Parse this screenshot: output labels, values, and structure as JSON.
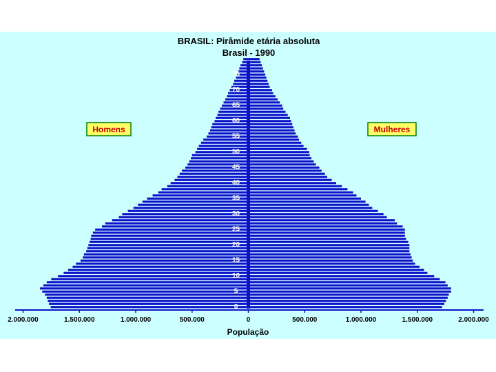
{
  "chart_data": {
    "type": "bar",
    "title": "BRASIL: Pirâmide etária absoluta",
    "subtitle": "Brasil - 1990",
    "xlabel": "População",
    "xlim": [
      -2000000,
      2000000
    ],
    "x_ticks": [
      {
        "value": -2000000,
        "label": "2.000.000"
      },
      {
        "value": -1500000,
        "label": "1.500.000"
      },
      {
        "value": -1000000,
        "label": "1.000.000"
      },
      {
        "value": -500000,
        "label": "500.000"
      },
      {
        "value": 0,
        "label": "0"
      },
      {
        "value": 500000,
        "label": "500.000"
      },
      {
        "value": 1000000,
        "label": "1.000.000"
      },
      {
        "value": 1500000,
        "label": "1.500.000"
      },
      {
        "value": 2000000,
        "label": "2.000.000"
      }
    ],
    "age_labels": [
      "0",
      "5",
      "10",
      "15",
      "20",
      "25",
      "30",
      "35",
      "40",
      "45",
      "50",
      "55",
      "60",
      "65",
      "70",
      "75"
    ],
    "ages": [
      0,
      1,
      2,
      3,
      4,
      5,
      6,
      7,
      8,
      9,
      10,
      11,
      12,
      13,
      14,
      15,
      16,
      17,
      18,
      19,
      20,
      21,
      22,
      23,
      24,
      25,
      26,
      27,
      28,
      29,
      30,
      31,
      32,
      33,
      34,
      35,
      36,
      37,
      38,
      39,
      40,
      41,
      42,
      43,
      44,
      45,
      46,
      47,
      48,
      49,
      50,
      51,
      52,
      53,
      54,
      55,
      56,
      57,
      58,
      59,
      60,
      61,
      62,
      63,
      64,
      65,
      66,
      67,
      68,
      69,
      70,
      71,
      72,
      73,
      74,
      75,
      76,
      77,
      78,
      79,
      80
    ],
    "series": [
      {
        "name": "Homens",
        "color": "#1010c8",
        "values": [
          1755000,
          1770000,
          1780000,
          1790000,
          1805000,
          1830000,
          1850000,
          1820000,
          1790000,
          1750000,
          1690000,
          1640000,
          1600000,
          1560000,
          1530000,
          1490000,
          1470000,
          1460000,
          1440000,
          1430000,
          1420000,
          1410000,
          1400000,
          1395000,
          1380000,
          1360000,
          1300000,
          1270000,
          1210000,
          1150000,
          1120000,
          1070000,
          1020000,
          980000,
          940000,
          900000,
          850000,
          800000,
          770000,
          720000,
          690000,
          655000,
          630000,
          610000,
          590000,
          560000,
          540000,
          525000,
          510000,
          500000,
          470000,
          455000,
          440000,
          420000,
          400000,
          370000,
          355000,
          340000,
          330000,
          320000,
          300000,
          290000,
          275000,
          265000,
          250000,
          235000,
          220000,
          205000,
          190000,
          180000,
          165000,
          150000,
          135000,
          125000,
          110000,
          100000,
          90000,
          80000,
          70000,
          55000,
          45000
        ]
      },
      {
        "name": "Mulheres",
        "color": "#1010c8",
        "values": [
          1720000,
          1740000,
          1755000,
          1770000,
          1780000,
          1800000,
          1800000,
          1770000,
          1750000,
          1700000,
          1650000,
          1590000,
          1560000,
          1520000,
          1480000,
          1460000,
          1450000,
          1440000,
          1430000,
          1430000,
          1430000,
          1420000,
          1400000,
          1390000,
          1390000,
          1390000,
          1370000,
          1320000,
          1300000,
          1230000,
          1200000,
          1150000,
          1100000,
          1070000,
          1040000,
          1000000,
          960000,
          930000,
          880000,
          830000,
          780000,
          740000,
          700000,
          680000,
          650000,
          630000,
          600000,
          580000,
          560000,
          545000,
          540000,
          520000,
          490000,
          470000,
          450000,
          440000,
          420000,
          410000,
          400000,
          390000,
          380000,
          370000,
          350000,
          330000,
          310000,
          300000,
          280000,
          260000,
          240000,
          220000,
          210000,
          190000,
          180000,
          170000,
          160000,
          150000,
          140000,
          130000,
          120000,
          110000,
          100000
        ]
      }
    ],
    "legend": [
      {
        "label": "Homens",
        "placement": "left"
      },
      {
        "label": "Mulheres",
        "placement": "right"
      }
    ],
    "colors": {
      "background": "#ccffff",
      "bars": "#1010c8",
      "axis": "#1010c8",
      "legend_fill": "#ffff66",
      "legend_text": "#cc0000",
      "legend_border": "#008000"
    }
  }
}
